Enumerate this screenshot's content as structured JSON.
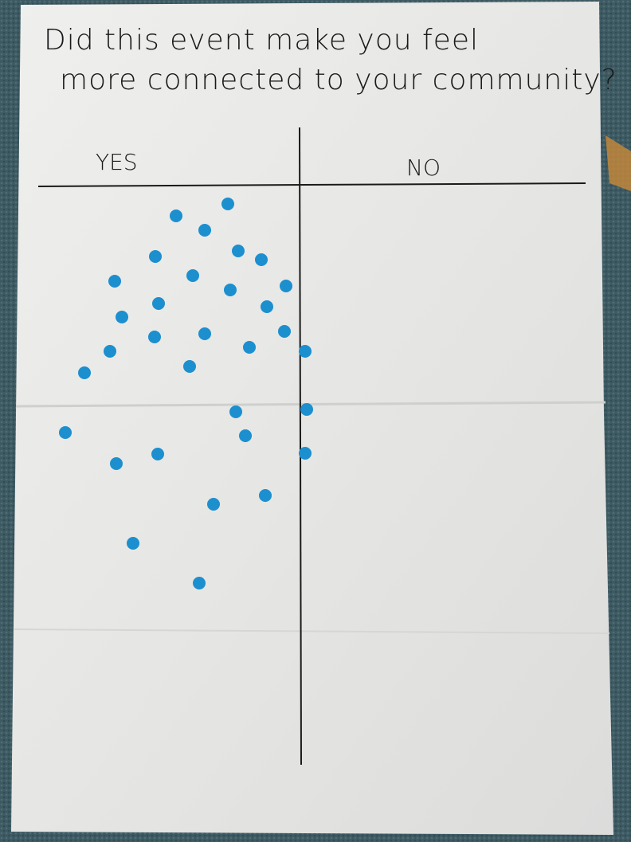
{
  "question": {
    "lines": [
      "Did this event make you feel",
      "more connected to your community?"
    ]
  },
  "columns": {
    "yes": "YES",
    "no": "NO"
  }
}
